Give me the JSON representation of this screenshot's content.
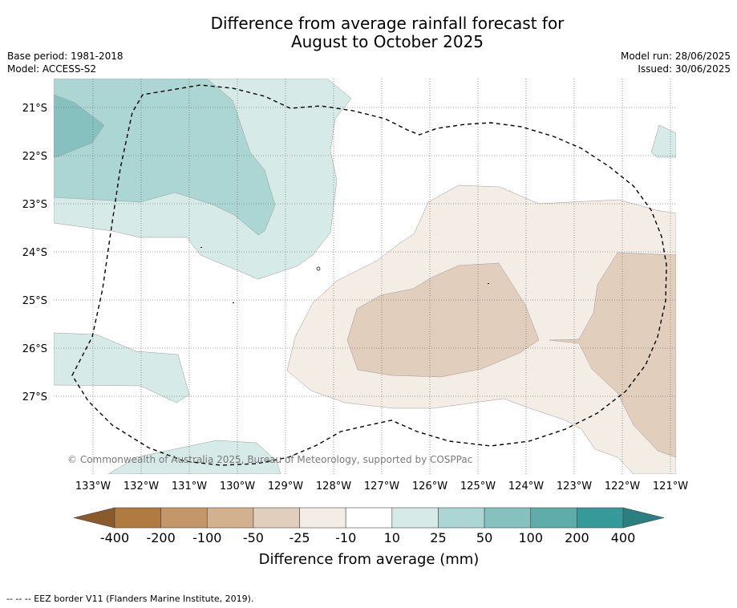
{
  "title": {
    "line1": "Difference from average rainfall forecast for",
    "line2": "August to October 2025"
  },
  "meta_left": {
    "base_period": "Base period: 1981-2018",
    "model": "Model: ACCESS-S2"
  },
  "meta_right": {
    "model_run": "Model run: 28/06/2025",
    "issued": "Issued: 30/06/2025"
  },
  "map": {
    "lat_labels": [
      "21°S",
      "22°S",
      "23°S",
      "24°S",
      "25°S",
      "26°S",
      "27°S"
    ],
    "lon_labels": [
      "133°W",
      "132°W",
      "131°W",
      "130°W",
      "129°W",
      "128°W",
      "127°W",
      "126°W",
      "125°W",
      "124°W",
      "123°W",
      "122°W",
      "121°W"
    ],
    "copyright": "© Commonwealth of Australia 2025, Bureau of Meteorology, supported by COSPPac",
    "grid_lines": true,
    "border_style": "dashed"
  },
  "colorbar": {
    "labels": [
      "-400",
      "-200",
      "-100",
      "-50",
      "-25",
      "-10",
      "10",
      "25",
      "50",
      "100",
      "200",
      "400"
    ],
    "low_extend_color": "#8a5a2b",
    "colors": [
      "#b07a41",
      "#c4966a",
      "#d3b08e",
      "#e2cebd",
      "#f4ede6",
      "#ffffff",
      "#d6eae8",
      "#acd6d4",
      "#86c1bf",
      "#5fadab",
      "#36999a"
    ],
    "high_extend_color": "#2a7f80",
    "title": "Difference from average (mm)"
  },
  "footer": "-- -- -- EEZ border V11 (Flanders Marine Institute, 2019)."
}
